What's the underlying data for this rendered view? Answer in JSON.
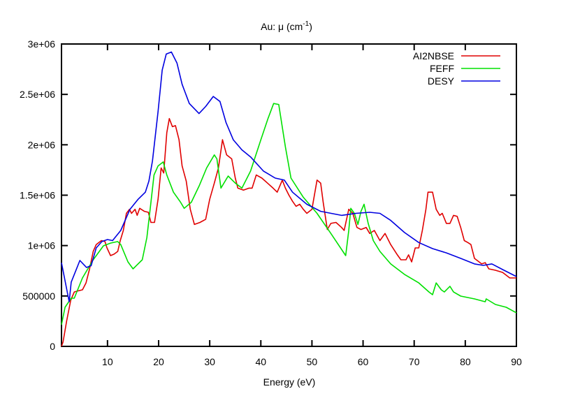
{
  "chart_data": {
    "type": "line",
    "title": "Au: μ (cm",
    "title_sup": "-1",
    "title_close": ")",
    "xlabel": "Energy (eV)",
    "ylabel": "",
    "xlim": [
      1,
      90
    ],
    "ylim": [
      0,
      3000000
    ],
    "grid": false,
    "legend_position": "top-right",
    "xticks": [
      10,
      20,
      30,
      40,
      50,
      60,
      70,
      80,
      90
    ],
    "xtick_labels": [
      "10",
      "20",
      "30",
      "40",
      "50",
      "60",
      "70",
      "80",
      "90"
    ],
    "yticks": [
      0,
      500000,
      1000000,
      1500000,
      2000000,
      2500000,
      3000000
    ],
    "ytick_labels": [
      "0",
      "500000",
      "1e+06",
      "1.5e+06",
      "2e+06",
      "2.5e+06",
      "3e+06"
    ],
    "series": [
      {
        "name": "AI2NBSE",
        "color": "#e00000",
        "x": [
          1,
          1.3,
          2,
          2.8,
          3.5,
          4,
          5.1,
          5.8,
          6.5,
          7.2,
          7.8,
          8.8,
          9.5,
          9.9,
          10.6,
          11.3,
          12,
          12.5,
          13.1,
          13.7,
          14.3,
          14.7,
          15.4,
          15.8,
          16.3,
          17.2,
          18,
          18.5,
          19.2,
          19.9,
          20.5,
          21,
          21.6,
          22.1,
          22.7,
          23.3,
          24,
          24.6,
          25.4,
          26.2,
          27,
          28.1,
          29.2,
          30,
          30.9,
          31.7,
          32.5,
          33.3,
          34.3,
          35,
          35.5,
          36.6,
          37.7,
          38.3,
          39.1,
          40.2,
          41.3,
          42.4,
          43.2,
          44.2,
          44.8,
          45.5,
          46.2,
          46.9,
          47.6,
          48.3,
          49,
          50,
          51,
          51.7,
          52.2,
          53,
          53.7,
          54.7,
          55.8,
          56.3,
          57.2,
          58,
          58.8,
          59.6,
          60.6,
          61.3,
          62.2,
          63.3,
          64.3,
          65.4,
          66.7,
          67.4,
          68.4,
          68.9,
          69.5,
          70.2,
          70.9,
          71.6,
          72.3,
          72.7,
          73.6,
          74.3,
          75,
          75.5,
          76.3,
          77,
          77.7,
          78.4,
          79.1,
          79.8,
          80.5,
          81.1,
          81.8,
          83.2,
          83.9,
          84.6,
          85.9,
          87.3,
          88.7,
          90
        ],
        "y": [
          0,
          42000,
          249000,
          457000,
          540000,
          547000,
          561000,
          630000,
          769000,
          942000,
          1010000,
          1050000,
          1040000,
          977000,
          901000,
          915000,
          942000,
          1050000,
          1150000,
          1320000,
          1360000,
          1320000,
          1360000,
          1300000,
          1370000,
          1340000,
          1330000,
          1230000,
          1230000,
          1460000,
          1770000,
          1720000,
          2120000,
          2260000,
          2180000,
          2190000,
          2050000,
          1790000,
          1640000,
          1360000,
          1210000,
          1230000,
          1260000,
          1460000,
          1620000,
          1770000,
          2050000,
          1900000,
          1860000,
          1670000,
          1570000,
          1550000,
          1570000,
          1570000,
          1700000,
          1670000,
          1620000,
          1570000,
          1530000,
          1650000,
          1570000,
          1500000,
          1440000,
          1390000,
          1410000,
          1360000,
          1320000,
          1360000,
          1650000,
          1620000,
          1430000,
          1160000,
          1220000,
          1230000,
          1180000,
          1150000,
          1360000,
          1320000,
          1180000,
          1160000,
          1180000,
          1120000,
          1150000,
          1050000,
          1120000,
          1010000,
          908000,
          859000,
          859000,
          908000,
          838000,
          977000,
          977000,
          1150000,
          1360000,
          1530000,
          1530000,
          1360000,
          1300000,
          1320000,
          1220000,
          1220000,
          1300000,
          1290000,
          1180000,
          1050000,
          1030000,
          1010000,
          873000,
          818000,
          831000,
          769000,
          755000,
          734000,
          679000,
          679000
        ]
      },
      {
        "name": "FEFF",
        "color": "#00e000",
        "x": [
          1,
          1.7,
          2.9,
          3.5,
          5.1,
          7.2,
          9.2,
          10.6,
          12,
          12.6,
          14,
          15,
          16.8,
          17.7,
          18.5,
          19.1,
          19.9,
          20.9,
          21.6,
          22.9,
          24.3,
          25,
          26.4,
          28,
          29.4,
          30.9,
          31.4,
          32.2,
          33.6,
          35,
          36.3,
          38,
          40,
          41.4,
          42.5,
          43.5,
          44.8,
          45.9,
          48.3,
          51,
          53.7,
          56.6,
          57.2,
          57.6,
          58.3,
          59,
          59.6,
          60.2,
          61,
          62,
          63.3,
          65.4,
          68.1,
          70.9,
          72.9,
          73.6,
          74.3,
          75.3,
          75.9,
          77,
          77.7,
          79.1,
          81.8,
          83.9,
          84.1,
          85.9,
          88,
          90
        ],
        "y": [
          215000,
          388000,
          478000,
          478000,
          679000,
          859000,
          998000,
          1025000,
          1040000,
          1010000,
          838000,
          769000,
          859000,
          1080000,
          1430000,
          1700000,
          1790000,
          1830000,
          1700000,
          1530000,
          1430000,
          1370000,
          1430000,
          1600000,
          1770000,
          1900000,
          1860000,
          1570000,
          1690000,
          1620000,
          1570000,
          1740000,
          2050000,
          2260000,
          2410000,
          2400000,
          1980000,
          1670000,
          1480000,
          1320000,
          1120000,
          901000,
          1150000,
          1370000,
          1320000,
          1210000,
          1340000,
          1410000,
          1220000,
          1050000,
          942000,
          818000,
          714000,
          630000,
          540000,
          513000,
          630000,
          561000,
          540000,
          596000,
          540000,
          499000,
          471000,
          443000,
          471000,
          416000,
          388000,
          333000
        ]
      },
      {
        "name": "DESY",
        "color": "#0000e0",
        "x": [
          1,
          2.5,
          2.9,
          4.6,
          5.9,
          6.8,
          7.8,
          8.9,
          10,
          11,
          12.6,
          14.4,
          16,
          17.4,
          18.1,
          18.8,
          19.9,
          20.7,
          21.5,
          22.5,
          23.6,
          24.6,
          26,
          27.9,
          29.2,
          30.7,
          32,
          33.2,
          34.6,
          36.3,
          38,
          40.5,
          42.8,
          44.6,
          46.2,
          49,
          51.7,
          55.8,
          58.6,
          61.3,
          63.3,
          65.4,
          68.1,
          70.9,
          73.6,
          76.3,
          79.1,
          81.8,
          83.5,
          85.2,
          87.3,
          90
        ],
        "y": [
          830000,
          443000,
          637000,
          852000,
          783000,
          800000,
          977000,
          1040000,
          1060000,
          1050000,
          1150000,
          1360000,
          1460000,
          1530000,
          1640000,
          1840000,
          2330000,
          2740000,
          2900000,
          2920000,
          2810000,
          2600000,
          2410000,
          2310000,
          2380000,
          2480000,
          2430000,
          2220000,
          2050000,
          1950000,
          1880000,
          1740000,
          1670000,
          1650000,
          1530000,
          1410000,
          1340000,
          1300000,
          1320000,
          1330000,
          1320000,
          1250000,
          1130000,
          1030000,
          970000,
          928000,
          873000,
          818000,
          804000,
          818000,
          762000,
          693000
        ]
      }
    ]
  }
}
